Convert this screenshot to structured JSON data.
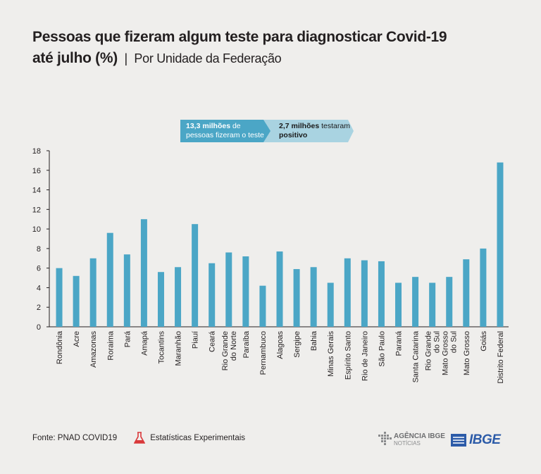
{
  "title_line1": "Pessoas que fizeram algum teste para diagnosticar Covid-19",
  "title_line2_bold": "até julho (%)",
  "title_separator": "|",
  "title_line2_sub": "Por Unidade da Federação",
  "banner": {
    "b1_line1_bold": "13,3 milhões",
    "b1_line1_rest": " de",
    "b1_line2": "pessoas fizeram o teste",
    "b2_line1_bold": "2,7 milhões",
    "b2_line1_rest": " testaram",
    "b2_line2_bold": "positivo",
    "colors": {
      "b1": "#4ba6c6",
      "b2": "#a9d3e1"
    }
  },
  "footer": {
    "source": "Fonte: PNAD COVID19",
    "experimental": "Estatísticas Experimentais",
    "agencia_line1": "AGÊNCIA IBGE",
    "agencia_line2": "NOTÍCIAS",
    "ibge": "IBGE"
  },
  "chart_data": {
    "type": "bar",
    "categories": [
      "Rondônia",
      "Acre",
      "Amazonas",
      "Roraima",
      "Pará",
      "Amapá",
      "Tocantins",
      "Maranhão",
      "Piauí",
      "Ceará",
      "Rio Grande do Norte",
      "Paraíba",
      "Pernambuco",
      "Alagoas",
      "Sergipe",
      "Bahia",
      "Minas Gerais",
      "Espírito Santo",
      "Rio de Janeiro",
      "São Paulo",
      "Paraná",
      "Santa Catarina",
      "Rio Grande do Sul",
      "Mato Grosso do Sul",
      "Mato Grosso",
      "Goiás",
      "Distrito Federal"
    ],
    "category_lines": [
      [
        "Rondônia"
      ],
      [
        "Acre"
      ],
      [
        "Amazonas"
      ],
      [
        "Roraima"
      ],
      [
        "Pará"
      ],
      [
        "Amapá"
      ],
      [
        "Tocantins"
      ],
      [
        "Maranhão"
      ],
      [
        "Piauí"
      ],
      [
        "Ceará"
      ],
      [
        "Rio Grande",
        "do Norte"
      ],
      [
        "Paraíba"
      ],
      [
        "Pernambuco"
      ],
      [
        "Alagoas"
      ],
      [
        "Sergipe"
      ],
      [
        "Bahia"
      ],
      [
        "Minas Gerais"
      ],
      [
        "Espírito Santo"
      ],
      [
        "Rio de Janeiro"
      ],
      [
        "São Paulo"
      ],
      [
        "Paraná"
      ],
      [
        "Santa Catarina"
      ],
      [
        "Rio Grande",
        "do Sul"
      ],
      [
        "Mato Grosso",
        "do Sul"
      ],
      [
        "Mato Grosso"
      ],
      [
        "Goiás"
      ],
      [
        "Distrito Federal"
      ]
    ],
    "values": [
      6.0,
      5.2,
      7.0,
      9.6,
      7.4,
      11.0,
      5.6,
      6.1,
      10.5,
      6.5,
      7.6,
      7.2,
      4.2,
      7.7,
      5.9,
      6.1,
      4.5,
      7.0,
      6.8,
      6.7,
      4.5,
      5.1,
      4.5,
      5.1,
      6.9,
      8.0,
      16.8
    ],
    "yticks": [
      0,
      2,
      4,
      6,
      8,
      10,
      12,
      14,
      16,
      18
    ],
    "ylim": [
      0,
      18
    ],
    "bar_color": "#4ba6c6",
    "grid": false
  }
}
